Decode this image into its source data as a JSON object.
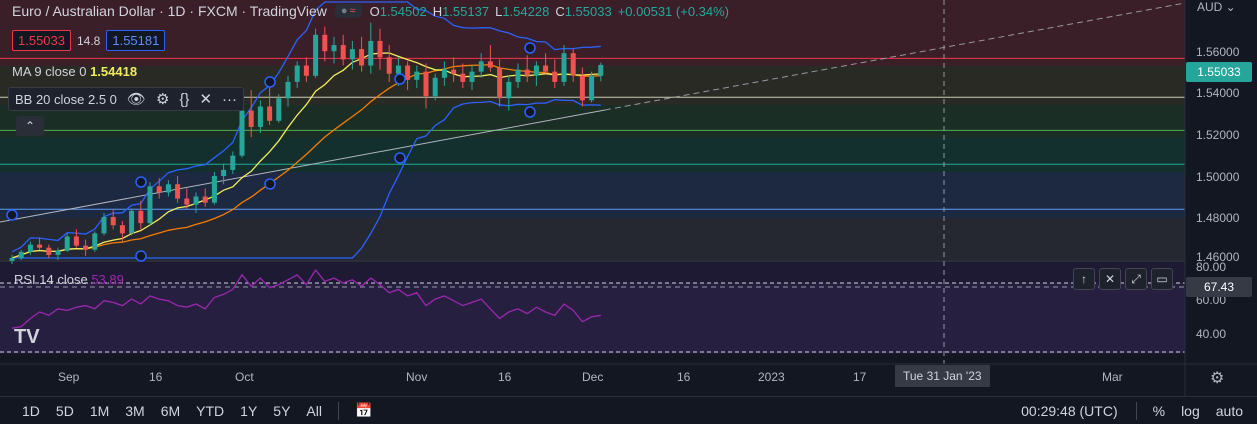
{
  "header": {
    "symbol_title": "Euro / Australian Dollar · 1D · FXCM · TradingView",
    "ohlc": [
      {
        "k": "O",
        "v": "1.54502"
      },
      {
        "k": "H",
        "v": "1.55137"
      },
      {
        "k": "L",
        "v": "1.54228"
      },
      {
        "k": "C",
        "v": "1.55033"
      }
    ],
    "change": "+0.00531 (+0.34%)",
    "bid": "1.55033",
    "spread": "14.8",
    "ask": "1.55181"
  },
  "indicators": {
    "ma_label": "MA 9 close 0",
    "ma_value": "1.54418",
    "bb_label": "BB 20 close 2.5 0",
    "rsi_label": "RSI 14 close",
    "rsi_value": "53.89"
  },
  "axis": {
    "currency": "AUD",
    "price_ticks": [
      "1.56000",
      "1.54000",
      "1.52000",
      "1.50000",
      "1.48000",
      "1.46000"
    ],
    "current_price": "1.55033",
    "rsi_ticks": [
      "80.00",
      "60.00",
      "40.00"
    ],
    "rsi_crosshair_value": "67.43",
    "time_ticks": [
      "Sep",
      "16",
      "Oct",
      "Nov",
      "16",
      "Dec",
      "16",
      "2023",
      "17",
      "Mar"
    ],
    "crosshair_date": "Tue 31 Jan '23"
  },
  "bottom_bar": {
    "ranges": [
      "1D",
      "5D",
      "1M",
      "3M",
      "6M",
      "YTD",
      "1Y",
      "5Y",
      "All"
    ],
    "clock": "00:29:48 (UTC)",
    "pct": "%",
    "log": "log",
    "auto": "auto"
  },
  "icons": {
    "visibility": "eye-icon",
    "settings": "gear-icon",
    "source": "braces-icon",
    "remove": "close-icon",
    "more": "more-icon",
    "date_range": "calendar-icon",
    "logo": "tradingview-logo"
  },
  "colors": {
    "background": "#131722",
    "bull": "#26a69a",
    "bear": "#ef5350",
    "ma": "#f5eb5a",
    "bb_basis": "#f57c00",
    "bb_band": "#2962ff",
    "rsi": "#9c27b0",
    "fib_line": "#f23645"
  },
  "chart_data": {
    "type": "candlestick",
    "price_range": [
      1.455,
      1.582
    ],
    "rsi_range": [
      30,
      87
    ],
    "fib_levels": [
      1.5535,
      1.5345,
      1.5183,
      1.5018,
      1.4798
    ],
    "candles": [
      [
        1.4545,
        1.4575,
        1.453,
        1.456
      ],
      [
        1.456,
        1.46,
        1.455,
        1.459
      ],
      [
        1.459,
        1.464,
        1.4575,
        1.4625
      ],
      [
        1.4625,
        1.466,
        1.46,
        1.461
      ],
      [
        1.461,
        1.4625,
        1.456,
        1.4575
      ],
      [
        1.4575,
        1.461,
        1.455,
        1.4595
      ],
      [
        1.4595,
        1.468,
        1.459,
        1.4665
      ],
      [
        1.4665,
        1.47,
        1.461,
        1.462
      ],
      [
        1.462,
        1.465,
        1.457,
        1.46
      ],
      [
        1.46,
        1.469,
        1.459,
        1.468
      ],
      [
        1.468,
        1.478,
        1.467,
        1.476
      ],
      [
        1.476,
        1.48,
        1.47,
        1.472
      ],
      [
        1.472,
        1.474,
        1.464,
        1.468
      ],
      [
        1.468,
        1.48,
        1.467,
        1.479
      ],
      [
        1.479,
        1.484,
        1.47,
        1.473
      ],
      [
        1.473,
        1.493,
        1.472,
        1.491
      ],
      [
        1.491,
        1.495,
        1.485,
        1.488
      ],
      [
        1.488,
        1.494,
        1.486,
        1.492
      ],
      [
        1.492,
        1.496,
        1.483,
        1.485
      ],
      [
        1.485,
        1.49,
        1.48,
        1.482
      ],
      [
        1.482,
        1.488,
        1.478,
        1.486
      ],
      [
        1.486,
        1.49,
        1.481,
        1.483
      ],
      [
        1.483,
        1.498,
        1.482,
        1.496
      ],
      [
        1.496,
        1.502,
        1.492,
        1.499
      ],
      [
        1.499,
        1.508,
        1.497,
        1.506
      ],
      [
        1.506,
        1.53,
        1.505,
        1.528
      ],
      [
        1.528,
        1.538,
        1.515,
        1.52
      ],
      [
        1.52,
        1.533,
        1.517,
        1.53
      ],
      [
        1.53,
        1.54,
        1.521,
        1.523
      ],
      [
        1.523,
        1.536,
        1.522,
        1.534
      ],
      [
        1.534,
        1.545,
        1.53,
        1.542
      ],
      [
        1.542,
        1.552,
        1.539,
        1.55
      ],
      [
        1.55,
        1.554,
        1.542,
        1.545
      ],
      [
        1.545,
        1.568,
        1.544,
        1.565
      ],
      [
        1.565,
        1.569,
        1.552,
        1.557
      ],
      [
        1.557,
        1.564,
        1.551,
        1.56
      ],
      [
        1.56,
        1.565,
        1.55,
        1.553
      ],
      [
        1.553,
        1.562,
        1.548,
        1.558
      ],
      [
        1.558,
        1.564,
        1.547,
        1.55
      ],
      [
        1.55,
        1.571,
        1.546,
        1.562
      ],
      [
        1.562,
        1.568,
        1.548,
        1.554
      ],
      [
        1.554,
        1.56,
        1.542,
        1.546
      ],
      [
        1.546,
        1.554,
        1.54,
        1.55
      ],
      [
        1.55,
        1.552,
        1.538,
        1.543
      ],
      [
        1.543,
        1.55,
        1.539,
        1.547
      ],
      [
        1.547,
        1.551,
        1.529,
        1.535
      ],
      [
        1.535,
        1.546,
        1.533,
        1.544
      ],
      [
        1.544,
        1.552,
        1.54,
        1.548
      ],
      [
        1.548,
        1.554,
        1.542,
        1.546
      ],
      [
        1.546,
        1.551,
        1.539,
        1.542
      ],
      [
        1.542,
        1.55,
        1.538,
        1.547
      ],
      [
        1.547,
        1.556,
        1.544,
        1.552
      ],
      [
        1.552,
        1.56,
        1.547,
        1.549
      ],
      [
        1.549,
        1.553,
        1.53,
        1.534
      ],
      [
        1.534,
        1.545,
        1.528,
        1.542
      ],
      [
        1.542,
        1.551,
        1.539,
        1.548
      ],
      [
        1.548,
        1.555,
        1.542,
        1.545
      ],
      [
        1.545,
        1.552,
        1.54,
        1.55
      ],
      [
        1.55,
        1.556,
        1.546,
        1.547
      ],
      [
        1.547,
        1.553,
        1.539,
        1.542
      ],
      [
        1.542,
        1.56,
        1.54,
        1.556
      ],
      [
        1.556,
        1.558,
        1.542,
        1.545
      ],
      [
        1.545,
        1.549,
        1.53,
        1.533
      ],
      [
        1.533,
        1.547,
        1.532,
        1.545
      ],
      [
        1.545,
        1.5514,
        1.5423,
        1.5503
      ]
    ],
    "rsi": [
      46,
      47,
      52,
      56,
      54,
      58,
      57,
      59,
      60,
      58,
      63,
      62,
      60,
      64,
      61,
      66,
      64,
      63,
      60,
      59,
      61,
      58,
      65,
      67,
      70,
      79,
      72,
      77,
      71,
      73,
      76,
      79,
      73,
      82,
      75,
      77,
      74,
      76,
      72,
      77,
      73,
      68,
      70,
      66,
      68,
      60,
      64,
      66,
      63,
      60,
      62,
      64,
      58,
      52,
      56,
      58,
      55,
      59,
      56,
      54,
      61,
      57,
      50,
      53,
      54
    ]
  }
}
